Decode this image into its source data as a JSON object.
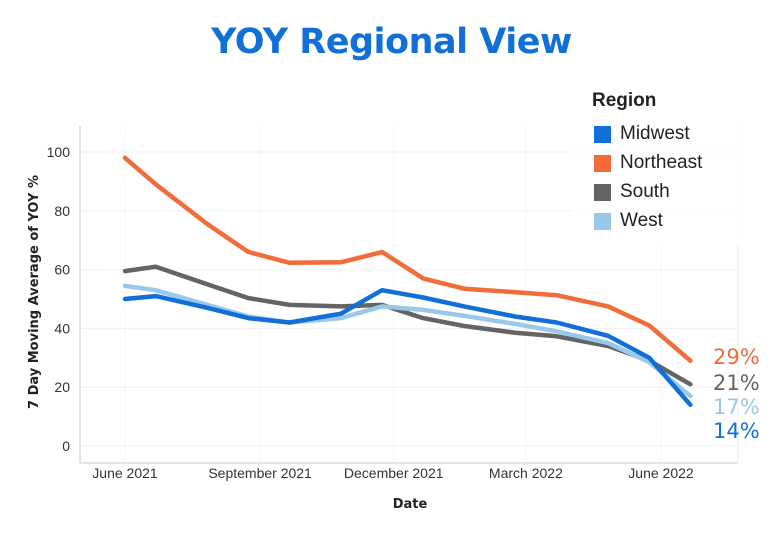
{
  "chart_data": {
    "type": "line",
    "title": "YOY Regional View",
    "xlabel": "Date",
    "ylabel": "7 Day Moving Average of YOY %",
    "ylim": [
      0,
      100
    ],
    "yticks": [
      0,
      20,
      40,
      60,
      80,
      100
    ],
    "xticks": [
      "June 2021",
      "September 2021",
      "December 2021",
      "March 2022",
      "June 2022"
    ],
    "x": [
      "2021-06-01",
      "2021-06-22",
      "2021-07-27",
      "2021-08-24",
      "2021-09-21",
      "2021-10-26",
      "2021-11-23",
      "2021-12-21",
      "2022-01-18",
      "2022-02-22",
      "2022-03-22",
      "2022-04-26",
      "2022-05-24",
      "2022-06-21",
      "2022-07-12"
    ],
    "series": [
      {
        "name": "Midwest",
        "color": "#1170d8",
        "values": [
          50,
          51,
          47,
          43.5,
          42,
          45,
          53,
          50.5,
          47.5,
          44,
          42,
          37.5,
          30,
          14,
          null
        ]
      },
      {
        "name": "Northeast",
        "color": "#f26b3a",
        "values": [
          98,
          89,
          75.5,
          66,
          62.3,
          62.5,
          66,
          57,
          53.5,
          52.3,
          51.3,
          47.5,
          41,
          29,
          null
        ]
      },
      {
        "name": "South",
        "color": "#646464",
        "values": [
          59.5,
          61,
          55,
          50.3,
          48,
          47.5,
          48,
          43.5,
          40.8,
          38.5,
          37.3,
          34,
          29,
          21,
          null
        ]
      },
      {
        "name": "West",
        "color": "#9ac8ea",
        "values": [
          54.5,
          53,
          48,
          44,
          42,
          43.5,
          47.5,
          46.3,
          44.3,
          41.5,
          39,
          35,
          28.5,
          17,
          null
        ]
      }
    ],
    "end_labels": [
      {
        "series": "Northeast",
        "text": "29%",
        "color": "#f26b3a"
      },
      {
        "series": "South",
        "text": "21%",
        "color": "#646464"
      },
      {
        "series": "West",
        "text": "17%",
        "color": "#9ac8ea"
      },
      {
        "series": "Midwest",
        "text": "14%",
        "color": "#1170d8"
      }
    ],
    "legend": {
      "title": "Region",
      "placement": "top-right"
    },
    "grid": true,
    "title_color": "#1170d8"
  }
}
